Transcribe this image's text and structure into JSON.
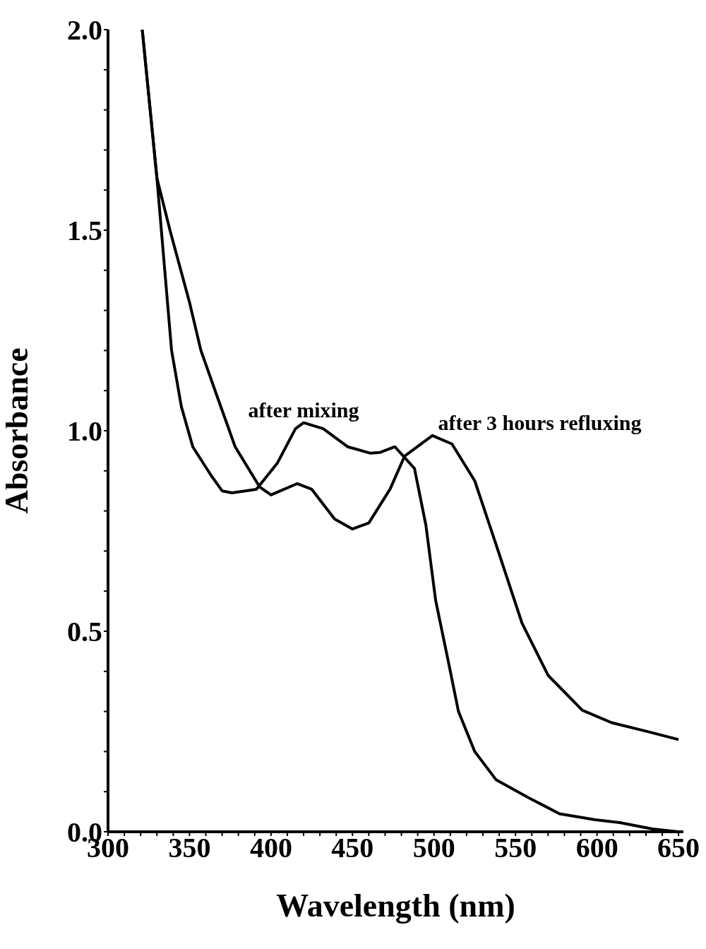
{
  "chart_data": {
    "type": "line",
    "xlabel": "Wavelength (nm)",
    "ylabel": "Absorbance",
    "xlim": [
      300,
      653
    ],
    "ylim": [
      0,
      2.0
    ],
    "xticks": [
      300,
      {
        "value": 310,
        "label": null
      },
      {
        "value": 320,
        "label": null
      },
      {
        "value": 330,
        "label": null
      },
      {
        "value": 340,
        "label": null
      },
      350,
      {
        "value": 360,
        "label": null
      },
      {
        "value": 370,
        "label": null
      },
      {
        "value": 380,
        "label": null
      },
      {
        "value": 390,
        "label": null
      },
      400,
      {
        "value": 410,
        "label": null
      },
      {
        "value": 420,
        "label": null
      },
      {
        "value": 430,
        "label": null
      },
      {
        "value": 440,
        "label": null
      },
      450,
      {
        "value": 460,
        "label": null
      },
      {
        "value": 470,
        "label": null
      },
      {
        "value": 480,
        "label": null
      },
      {
        "value": 490,
        "label": null
      },
      500,
      {
        "value": 510,
        "label": null
      },
      {
        "value": 520,
        "label": null
      },
      {
        "value": 530,
        "label": null
      },
      {
        "value": 540,
        "label": null
      },
      550,
      {
        "value": 560,
        "label": null
      },
      {
        "value": 570,
        "label": null
      },
      {
        "value": 580,
        "label": null
      },
      {
        "value": 590,
        "label": null
      },
      600,
      {
        "value": 610,
        "label": null
      },
      {
        "value": 620,
        "label": null
      },
      {
        "value": 630,
        "label": null
      },
      {
        "value": 640,
        "label": null
      },
      650
    ],
    "yticks": [
      {
        "value": 0,
        "label": "0.0"
      },
      {
        "value": 0.1,
        "label": null
      },
      {
        "value": 0.2,
        "label": null
      },
      {
        "value": 0.3,
        "label": null
      },
      {
        "value": 0.4,
        "label": null
      },
      0.5,
      {
        "value": 0.6,
        "label": null
      },
      {
        "value": 0.7,
        "label": null
      },
      {
        "value": 0.8,
        "label": null
      },
      {
        "value": 0.9,
        "label": null
      },
      {
        "value": 1,
        "label": "1.0"
      },
      {
        "value": 1.1,
        "label": null
      },
      {
        "value": 1.2,
        "label": null
      },
      {
        "value": 1.3,
        "label": null
      },
      {
        "value": 1.4,
        "label": null
      },
      1.5,
      {
        "value": 1.6,
        "label": null
      },
      {
        "value": 1.7,
        "label": null
      },
      {
        "value": 1.8,
        "label": null
      },
      {
        "value": 1.9,
        "label": null
      },
      {
        "value": 2,
        "label": "2.0"
      }
    ],
    "marker": "none",
    "line_style": "solid",
    "series": [
      {
        "name": "after mixing",
        "color": "#000000",
        "x": [
          321,
          330,
          339,
          345,
          352,
          363,
          370,
          376,
          391,
          404,
          415,
          420,
          432,
          447,
          461,
          467,
          476,
          488,
          495,
          501,
          509,
          515,
          525,
          538,
          558,
          577,
          599,
          614,
          634,
          650
        ],
        "values": [
          2.0,
          1.63,
          1.2,
          1.06,
          0.96,
          0.89,
          0.85,
          0.845,
          0.854,
          0.92,
          1.005,
          1.02,
          1.005,
          0.96,
          0.944,
          0.946,
          0.96,
          0.906,
          0.765,
          0.577,
          0.42,
          0.3,
          0.2,
          0.13,
          0.085,
          0.045,
          0.03,
          0.023,
          0.007,
          0.0
        ]
      },
      {
        "name": "after 3 hours refluxing",
        "color": "#000000",
        "x": [
          321,
          330,
          338,
          350,
          357,
          367,
          378,
          393,
          400,
          416,
          425,
          439,
          450,
          460,
          473,
          482,
          499,
          511,
          525,
          538,
          554,
          570,
          591,
          609,
          632,
          650
        ],
        "values": [
          2.0,
          1.63,
          1.5,
          1.32,
          1.2,
          1.085,
          0.96,
          0.86,
          0.84,
          0.868,
          0.854,
          0.78,
          0.755,
          0.77,
          0.854,
          0.937,
          0.988,
          0.967,
          0.875,
          0.717,
          0.52,
          0.39,
          0.303,
          0.272,
          0.249,
          0.23
        ]
      }
    ]
  }
}
